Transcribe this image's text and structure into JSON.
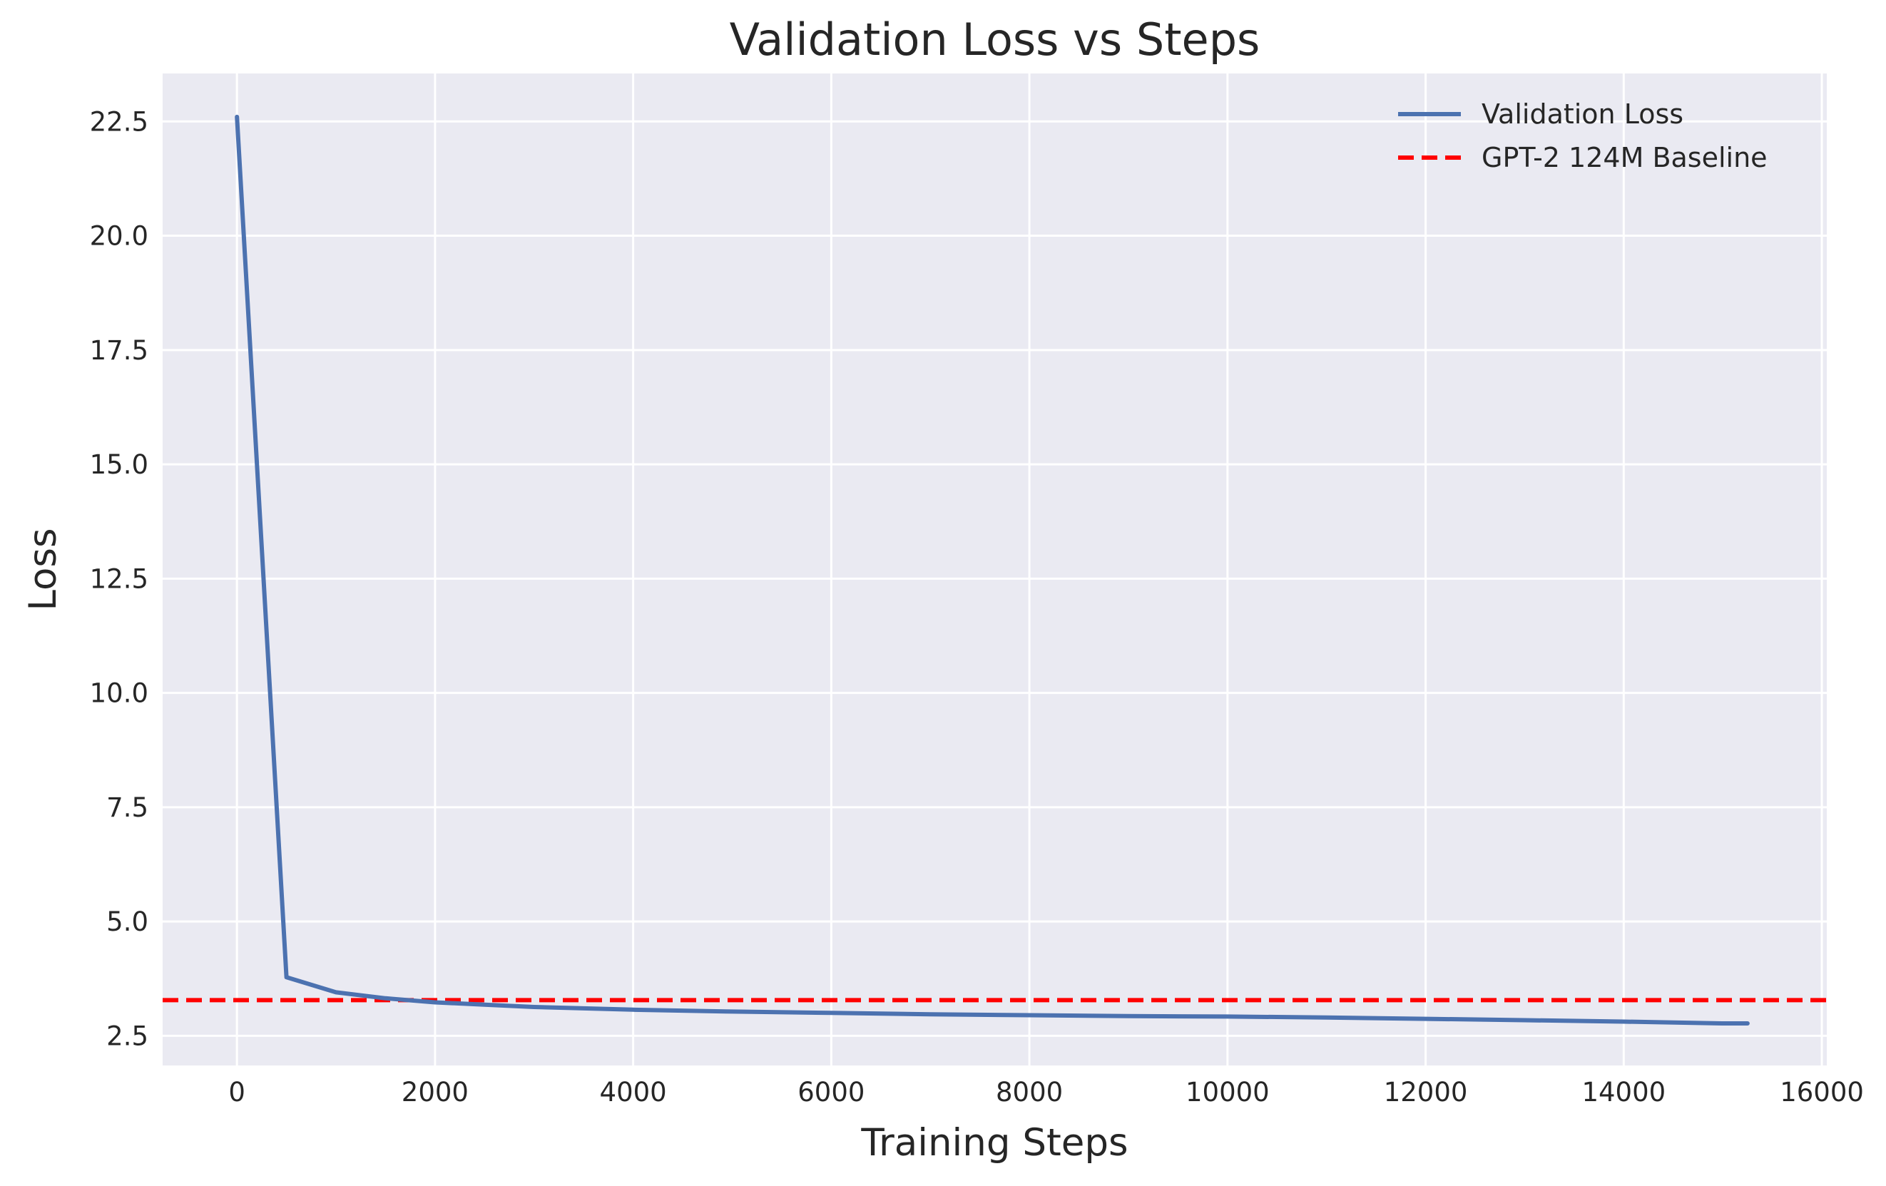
{
  "chart_data": {
    "type": "line",
    "title": "Validation Loss vs Steps",
    "xlabel": "Training Steps",
    "ylabel": "Loss",
    "xlim": [
      -750,
      16050
    ],
    "ylim": [
      1.85,
      23.55
    ],
    "x_ticks": [
      0,
      2000,
      4000,
      6000,
      8000,
      10000,
      12000,
      14000,
      16000
    ],
    "y_ticks": [
      2.5,
      5.0,
      7.5,
      10.0,
      12.5,
      15.0,
      17.5,
      20.0,
      22.5
    ],
    "x_tick_labels": [
      "0",
      "2000",
      "4000",
      "6000",
      "8000",
      "10000",
      "12000",
      "14000",
      "16000"
    ],
    "y_tick_labels": [
      "2.5",
      "5.0",
      "7.5",
      "10.0",
      "12.5",
      "15.0",
      "17.5",
      "20.0",
      "22.5"
    ],
    "grid": true,
    "legend_position": "top-right",
    "series": [
      {
        "name": "Validation Loss",
        "style": "solid",
        "color": "#4c72b0",
        "x": [
          0,
          500,
          1000,
          1500,
          2000,
          2500,
          3000,
          4000,
          5000,
          6000,
          7000,
          8000,
          9000,
          10000,
          11000,
          12000,
          13000,
          14000,
          15000,
          15250
        ],
        "y": [
          22.6,
          3.78,
          3.45,
          3.32,
          3.23,
          3.18,
          3.13,
          3.07,
          3.03,
          3.0,
          2.97,
          2.95,
          2.93,
          2.92,
          2.9,
          2.87,
          2.84,
          2.81,
          2.77,
          2.77
        ]
      },
      {
        "name": "GPT-2 124M Baseline",
        "style": "dashed",
        "color": "#ff0000",
        "baseline_y": 3.28
      }
    ],
    "colors": {
      "plot_background": "#eaeaf2",
      "grid": "#ffffff",
      "text": "#262626"
    }
  }
}
